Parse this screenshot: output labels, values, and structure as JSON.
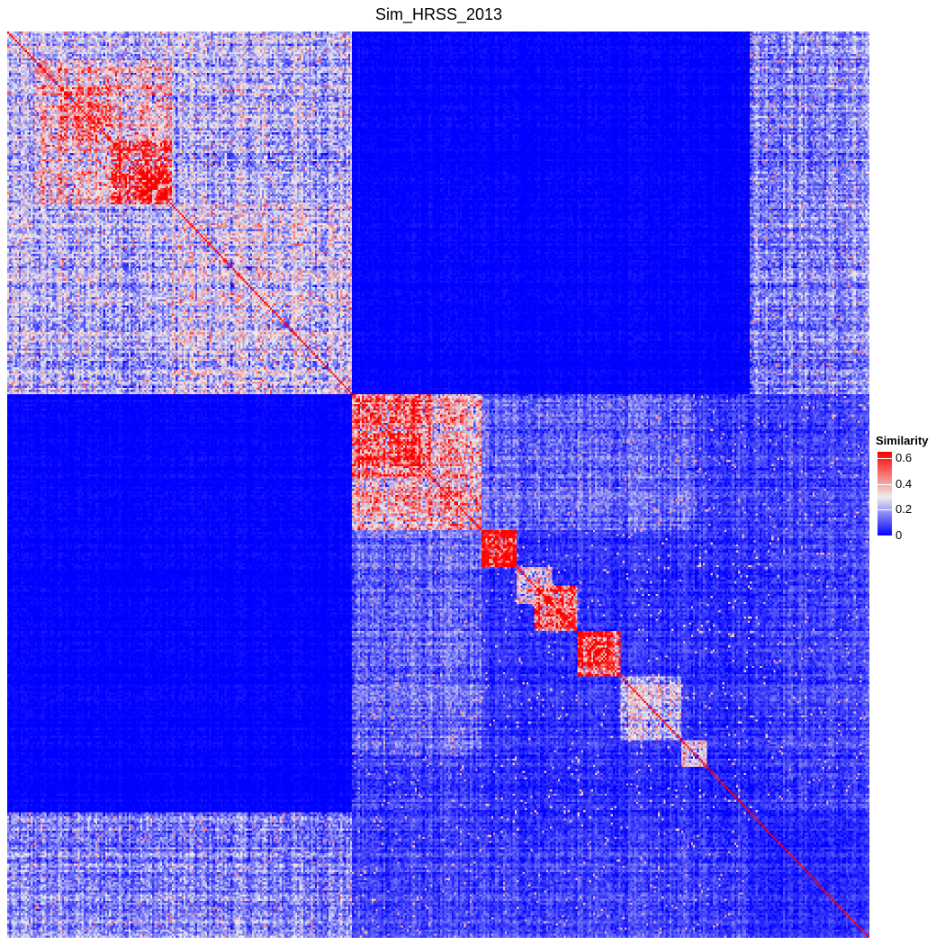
{
  "chart_data": {
    "type": "heatmap",
    "title": "Sim_HRSS_2013",
    "legend": {
      "title": "Similarity",
      "placement": "right",
      "ticks": [
        0.6,
        0.4,
        0.2,
        0
      ],
      "tick_labels": [
        "0.6",
        "0.4",
        "0.2",
        "0"
      ],
      "range": [
        0,
        0.65
      ],
      "colors": {
        "low": "#0000ff",
        "mid": "#eeeeee",
        "high": "#ff0000"
      },
      "mid_value": 0.3
    },
    "matrix_size_approx": 440,
    "clusters": [
      {
        "range": [
          0.0,
          0.4
        ],
        "mean_similarity": 0.22
      },
      {
        "range": [
          0.03,
          0.19
        ],
        "mean_similarity": 0.34
      },
      {
        "range": [
          0.06,
          0.12
        ],
        "mean_similarity": 0.45
      },
      {
        "range": [
          0.12,
          0.19
        ],
        "mean_similarity": 0.58
      },
      {
        "range": [
          0.19,
          0.4
        ],
        "mean_similarity": 0.26
      },
      {
        "range": [
          0.4,
          0.55
        ],
        "mean_similarity": 0.36
      },
      {
        "range": [
          0.4,
          0.49
        ],
        "mean_similarity": 0.48
      },
      {
        "range": [
          0.44,
          0.48
        ],
        "mean_similarity": 0.58
      },
      {
        "range": [
          0.55,
          0.88
        ],
        "mean_similarity": 0.06
      },
      {
        "range": [
          0.55,
          0.59
        ],
        "mean_similarity": 0.62
      },
      {
        "range": [
          0.59,
          0.63
        ],
        "mean_similarity": 0.35
      },
      {
        "range": [
          0.61,
          0.66
        ],
        "mean_similarity": 0.52
      },
      {
        "range": [
          0.66,
          0.71
        ],
        "mean_similarity": 0.55
      },
      {
        "range": [
          0.71,
          0.78
        ],
        "mean_similarity": 0.24
      },
      {
        "range": [
          0.78,
          0.81
        ],
        "mean_similarity": 0.3
      },
      {
        "range": [
          0.86,
          1.0
        ],
        "mean_similarity": 0.05
      }
    ],
    "off_diagonal_blocks": [
      {
        "rows": [
          0.0,
          0.4
        ],
        "cols": [
          0.4,
          0.86
        ],
        "mean_similarity": 0.0
      },
      {
        "rows": [
          0.4,
          0.86
        ],
        "cols": [
          0.0,
          0.33
        ],
        "mean_similarity": 0.0
      },
      {
        "rows": [
          0.4,
          0.55
        ],
        "cols": [
          0.55,
          0.8
        ],
        "mean_similarity": 0.16
      },
      {
        "rows": [
          0.55,
          0.8
        ],
        "cols": [
          0.4,
          0.55
        ],
        "mean_similarity": 0.12
      },
      {
        "rows": [
          0.86,
          1.0
        ],
        "cols": [
          0.0,
          0.4
        ],
        "mean_similarity": 0.18
      },
      {
        "rows": [
          0.0,
          0.4
        ],
        "cols": [
          0.86,
          1.0
        ],
        "mean_similarity": 0.16
      },
      {
        "rows": [
          0.82,
          0.86
        ],
        "cols": [
          0.55,
          0.71
        ],
        "mean_similarity": 0.2
      }
    ],
    "diagonal_value": 0.65
  }
}
